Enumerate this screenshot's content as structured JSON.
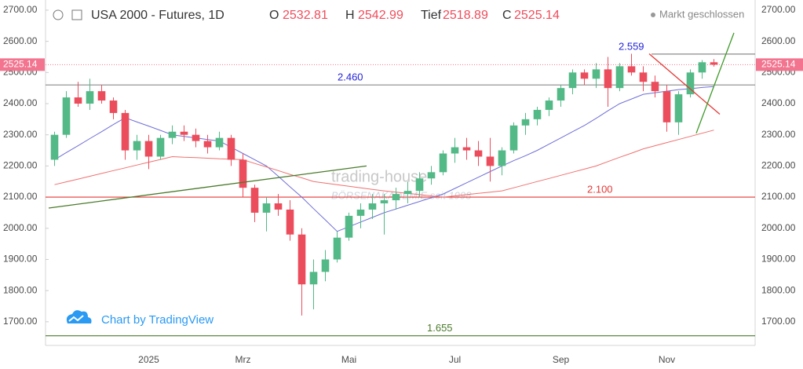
{
  "chart_data": {
    "type": "candlestick",
    "title": "USA 2000 - Futures, 1D",
    "ohlc_labels": [
      "O",
      "H",
      "Tief",
      "C"
    ],
    "status": "Markt geschlossen",
    "credit": "Chart by TradingView",
    "watermark": [
      "trading-house",
      "BÖRSENAKADEMIE seit 1998"
    ],
    "up_color": "#53b987",
    "down_color": "#eb4d5c",
    "categories": [
      null,
      null,
      null,
      null,
      null,
      null,
      null,
      null,
      "2025",
      null,
      null,
      null,
      null,
      null,
      null,
      null,
      "Mrz",
      null,
      null,
      null,
      null,
      null,
      null,
      null,
      null,
      "Mai",
      null,
      null,
      null,
      null,
      null,
      null,
      null,
      null,
      "Jul",
      null,
      null,
      null,
      null,
      null,
      null,
      null,
      null,
      "Sep",
      null,
      null,
      null,
      null,
      null,
      null,
      null,
      null,
      "Nov",
      null,
      null,
      null,
      null
    ],
    "open": [
      2220,
      2300,
      2420,
      2400,
      2440,
      2410,
      2370,
      2250,
      2280,
      2230,
      2290,
      2310,
      2300,
      2280,
      2260,
      2290,
      2220,
      2130,
      2050,
      2080,
      2060,
      1980,
      1820,
      1860,
      1900,
      1970,
      2040,
      2060,
      2080,
      2090,
      2110,
      2120,
      2160,
      2180,
      2240,
      2260,
      2250,
      2230,
      2200,
      2250,
      2330,
      2350,
      2380,
      2410,
      2450,
      2500,
      2480,
      2510,
      2450,
      2520,
      2500,
      2470,
      2440,
      2340,
      2430,
      2500,
      2532.81
    ],
    "high": [
      2310,
      2440,
      2470,
      2480,
      2460,
      2420,
      2380,
      2300,
      2300,
      2300,
      2330,
      2330,
      2320,
      2300,
      2310,
      2300,
      2240,
      2140,
      2100,
      2110,
      2090,
      2000,
      1900,
      1930,
      1990,
      2050,
      2080,
      2110,
      2110,
      2130,
      2150,
      2180,
      2200,
      2250,
      2290,
      2290,
      2280,
      2290,
      2260,
      2340,
      2370,
      2390,
      2420,
      2460,
      2510,
      2510,
      2530,
      2550,
      2530,
      2560,
      2520,
      2490,
      2460,
      2440,
      2510,
      2540,
      2542.99
    ],
    "low": [
      2200,
      2290,
      2390,
      2380,
      2400,
      2350,
      2220,
      2220,
      2190,
      2220,
      2270,
      2280,
      2260,
      2240,
      2250,
      2200,
      2100,
      2020,
      1990,
      2040,
      1960,
      1720,
      1740,
      1830,
      1890,
      1960,
      2000,
      2030,
      1980,
      2060,
      2080,
      2100,
      2140,
      2170,
      2210,
      2220,
      2200,
      2150,
      2170,
      2240,
      2300,
      2330,
      2360,
      2390,
      2430,
      2460,
      2450,
      2390,
      2440,
      2490,
      2440,
      2420,
      2310,
      2300,
      2420,
      2480,
      2518.89
    ],
    "close": [
      2300,
      2420,
      2400,
      2440,
      2410,
      2370,
      2250,
      2280,
      2230,
      2290,
      2310,
      2300,
      2280,
      2260,
      2290,
      2220,
      2130,
      2050,
      2080,
      2060,
      1980,
      1820,
      1860,
      1900,
      1970,
      2040,
      2060,
      2080,
      2090,
      2110,
      2120,
      2160,
      2180,
      2240,
      2260,
      2250,
      2230,
      2200,
      2250,
      2330,
      2350,
      2380,
      2410,
      2450,
      2500,
      2480,
      2510,
      2450,
      2520,
      2500,
      2470,
      2440,
      2340,
      2430,
      2500,
      2532.81,
      2525.14
    ],
    "series": [
      {
        "color": "#6f6fd8",
        "values": [
          2220,
          2243,
          2265,
          2288,
          2310,
          2333,
          2355,
          2341,
          2328,
          2314,
          2300,
          2295,
          2290,
          2285,
          2280,
          2260,
          2240,
          2220,
          2200,
          2167,
          2133,
          2100,
          2063,
          2027,
          1990,
          2005,
          2020,
          2035,
          2050,
          2062,
          2074,
          2086,
          2098,
          2110,
          2128,
          2146,
          2164,
          2182,
          2200,
          2217,
          2233,
          2250,
          2270,
          2290,
          2310,
          2330,
          2353,
          2377,
          2400,
          2415,
          2430,
          2435,
          2440,
          2445,
          2448,
          2452,
          2455
        ]
      },
      {
        "color": "#f07070",
        "values": [
          2140,
          2149,
          2158,
          2167,
          2176,
          2185,
          2194,
          2203,
          2212,
          2221,
          2230,
          2228,
          2227,
          2225,
          2223,
          2222,
          2220,
          2208,
          2197,
          2185,
          2173,
          2162,
          2150,
          2145,
          2140,
          2135,
          2130,
          2125,
          2120,
          2116,
          2112,
          2108,
          2104,
          2100,
          2104,
          2108,
          2112,
          2116,
          2120,
          2130,
          2140,
          2150,
          2160,
          2170,
          2180,
          2190,
          2200,
          2214,
          2228,
          2241,
          2255,
          2265,
          2275,
          2285,
          2295,
          2305,
          2315
        ]
      }
    ],
    "levels": [
      {
        "value": 2559,
        "label": "2.559",
        "color": "#8a8a8a"
      },
      {
        "value": 2460,
        "label": "2.460",
        "color": "#8a8a8a"
      },
      {
        "value": 2100,
        "label": "2.100",
        "color": "#e53935"
      },
      {
        "value": 1655,
        "label": "1.655",
        "color": "#4a7a2a"
      }
    ],
    "trendlines": [
      {
        "color": "#4a7a2a",
        "from": [
          -0.5,
          2065
        ],
        "to": [
          26.5,
          2200
        ]
      },
      {
        "color": "#e53935",
        "from": [
          50.5,
          2560
        ],
        "to": [
          56.5,
          2366
        ]
      },
      {
        "color": "#3f9a2a",
        "from": [
          54.5,
          2305
        ],
        "to": [
          57.7,
          2627
        ]
      }
    ],
    "price_color": "#f2748f",
    "ylim": [
      1624,
      2720
    ],
    "yticks": [
      {
        "value": 1700,
        "label": "1700.00"
      },
      {
        "value": 1800,
        "label": "1800.00"
      },
      {
        "value": 1900,
        "label": "1900.00"
      },
      {
        "value": 2000,
        "label": "2000.00"
      },
      {
        "value": 2100,
        "label": "2100.00"
      },
      {
        "value": 2200,
        "label": "2200.00"
      },
      {
        "value": 2300,
        "label": "2300.00"
      },
      {
        "value": 2400,
        "label": "2400.00"
      },
      {
        "value": 2500,
        "label": "2500.00"
      },
      {
        "value": 2600,
        "label": "2600.00"
      },
      {
        "value": 2700,
        "label": "2700.00"
      }
    ]
  }
}
